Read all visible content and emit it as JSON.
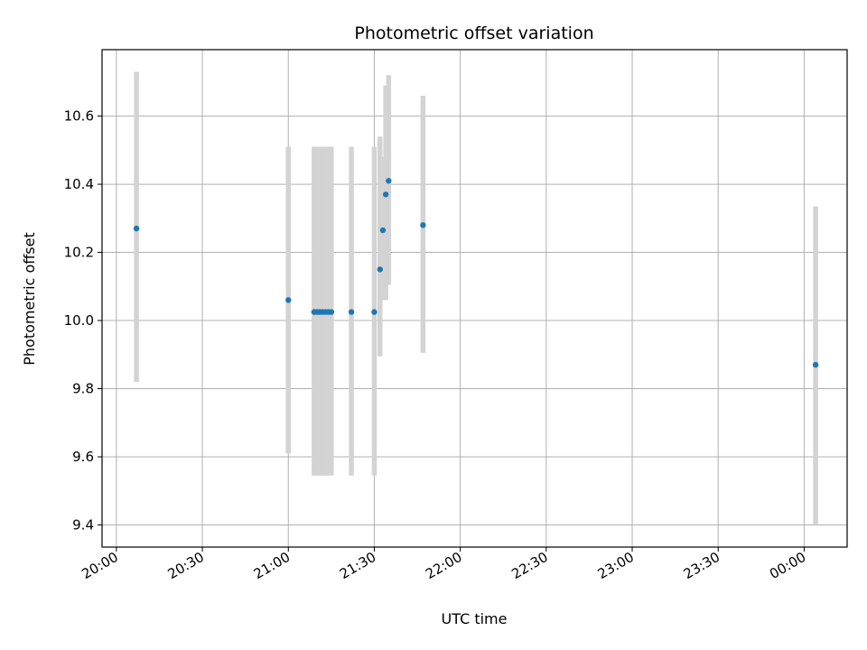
{
  "chart_data": {
    "type": "scatter",
    "title": "Photometric offset variation",
    "xlabel": "UTC time",
    "ylabel": "Photometric offset",
    "x_tick_labels": [
      "20:00",
      "20:30",
      "21:00",
      "21:30",
      "22:00",
      "22:30",
      "23:00",
      "23:30",
      "00:00"
    ],
    "x_tick_minutes": [
      0,
      30,
      60,
      90,
      120,
      150,
      180,
      210,
      240
    ],
    "xlim_minutes": [
      -5,
      255
    ],
    "y_ticks": [
      9.4,
      9.6,
      9.8,
      10.0,
      10.2,
      10.4,
      10.6
    ],
    "y_tick_labels": [
      "9.4",
      "9.6",
      "9.8",
      "10.0",
      "10.2",
      "10.4",
      "10.6"
    ],
    "ylim": [
      9.335,
      10.795
    ],
    "grid": true,
    "point_color": "#1f77b4",
    "errorbar_color": "#d3d3d3",
    "points": [
      {
        "t": "20:07",
        "y": 10.27,
        "ylow": 9.82,
        "yhigh": 10.73
      },
      {
        "t": "21:00",
        "y": 10.06,
        "ylow": 9.61,
        "yhigh": 10.51
      },
      {
        "t": "21:09",
        "y": 10.025,
        "ylow": 9.545,
        "yhigh": 10.51
      },
      {
        "t": "21:10",
        "y": 10.025,
        "ylow": 9.545,
        "yhigh": 10.51
      },
      {
        "t": "21:11",
        "y": 10.025,
        "ylow": 9.545,
        "yhigh": 10.51
      },
      {
        "t": "21:12",
        "y": 10.025,
        "ylow": 9.545,
        "yhigh": 10.51
      },
      {
        "t": "21:13",
        "y": 10.025,
        "ylow": 9.545,
        "yhigh": 10.51
      },
      {
        "t": "21:14",
        "y": 10.025,
        "ylow": 9.545,
        "yhigh": 10.51
      },
      {
        "t": "21:15",
        "y": 10.025,
        "ylow": 9.545,
        "yhigh": 10.51
      },
      {
        "t": "21:22",
        "y": 10.025,
        "ylow": 9.545,
        "yhigh": 10.51
      },
      {
        "t": "21:30",
        "y": 10.025,
        "ylow": 9.545,
        "yhigh": 10.51
      },
      {
        "t": "21:32",
        "y": 10.15,
        "ylow": 9.895,
        "yhigh": 10.54
      },
      {
        "t": "21:33",
        "y": 10.265,
        "ylow": 10.06,
        "yhigh": 10.48
      },
      {
        "t": "21:34",
        "y": 10.37,
        "ylow": 10.06,
        "yhigh": 10.69
      },
      {
        "t": "21:35",
        "y": 10.41,
        "ylow": 10.105,
        "yhigh": 10.72
      },
      {
        "t": "21:47",
        "y": 10.28,
        "ylow": 9.905,
        "yhigh": 10.66
      },
      {
        "t": "00:04",
        "y": 9.87,
        "ylow": 9.4,
        "yhigh": 10.335
      }
    ]
  }
}
